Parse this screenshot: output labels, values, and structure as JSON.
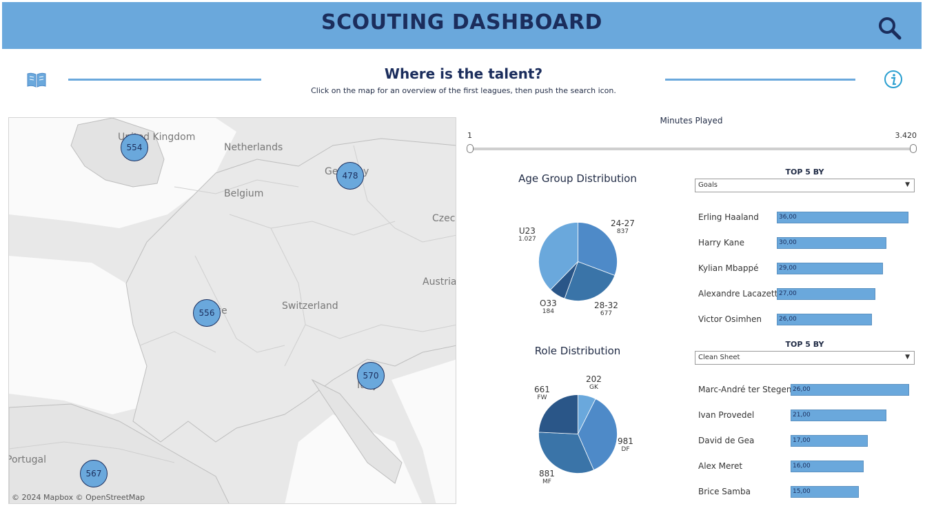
{
  "header": {
    "title": "SCOUTING DASHBOARD"
  },
  "subheader": {
    "title": "Where is the talent?",
    "text": "Click on the map for an overview of the first leagues, then push the search icon."
  },
  "map": {
    "attribution": "© 2024 Mapbox  © OpenStreetMap",
    "labels": [
      "United Kingdom",
      "Netherlands",
      "Germany",
      "Belgium",
      "Czech",
      "Austria",
      "France",
      "Switzerland",
      "Italy",
      "Portugal"
    ],
    "clusters": [
      "554",
      "478",
      "556",
      "570",
      "567"
    ]
  },
  "slider": {
    "title": "Minutes Played",
    "min": "1",
    "max": "3.420"
  },
  "age": {
    "title": "Age Group Distribution",
    "labels": [
      {
        "name": "U23",
        "value": "1.027"
      },
      {
        "name": "24-27",
        "value": "837"
      },
      {
        "name": "28-32",
        "value": "677"
      },
      {
        "name": "O33",
        "value": "184"
      }
    ],
    "slices": [
      {
        "value": 837,
        "color": "#4e8ac8"
      },
      {
        "value": 677,
        "color": "#3a74a8"
      },
      {
        "value": 184,
        "color": "#2a5688"
      },
      {
        "value": 1027,
        "color": "#6aa8dc"
      }
    ]
  },
  "role": {
    "title": "Role Distribution",
    "labels": [
      {
        "name": "202",
        "value": "GK"
      },
      {
        "name": "981",
        "value": "DF"
      },
      {
        "name": "881",
        "value": "MF"
      },
      {
        "name": "661",
        "value": "FW"
      }
    ],
    "slices": [
      {
        "value": 202,
        "color": "#6aa8dc"
      },
      {
        "value": 981,
        "color": "#4e8ac8"
      },
      {
        "value": 881,
        "color": "#3a74a8"
      },
      {
        "value": 661,
        "color": "#2a5688"
      }
    ]
  },
  "top5_goals": {
    "title": "TOP 5 BY",
    "selected": "Goals",
    "max": 36,
    "rows": [
      {
        "name": "Erling Haaland",
        "label": "36,00",
        "value": 36
      },
      {
        "name": "Harry Kane",
        "label": "30,00",
        "value": 30
      },
      {
        "name": "Kylian Mbappé",
        "label": "29,00",
        "value": 29
      },
      {
        "name": "Alexandre Lacazette",
        "label": "27,00",
        "value": 27
      },
      {
        "name": "Victor Osimhen",
        "label": "26,00",
        "value": 26
      }
    ]
  },
  "top5_clean": {
    "title": "TOP 5 BY",
    "selected": "Clean Sheet",
    "max": 26,
    "rows": [
      {
        "name": "Marc-André ter Stegen",
        "label": "26,00",
        "value": 26
      },
      {
        "name": "Ivan Provedel",
        "label": "21,00",
        "value": 21
      },
      {
        "name": "David de Gea",
        "label": "17,00",
        "value": 17
      },
      {
        "name": "Alex Meret",
        "label": "16,00",
        "value": 16
      },
      {
        "name": "Brice Samba",
        "label": "15,00",
        "value": 15
      }
    ]
  }
}
